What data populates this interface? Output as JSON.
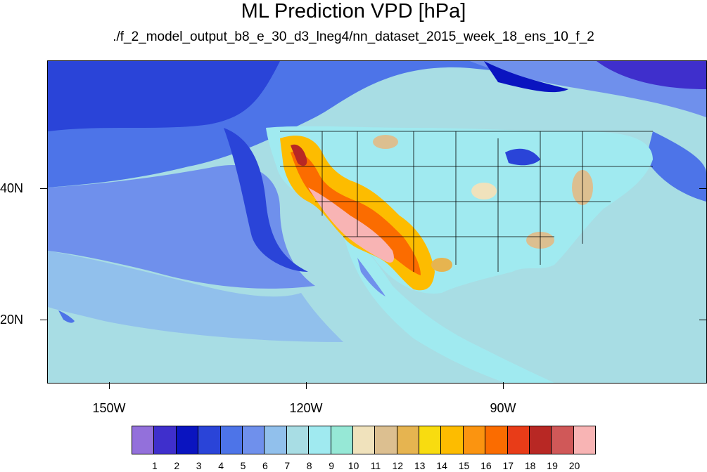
{
  "title": "ML Prediction VPD [hPa]",
  "subtitle": "./f_2_model_output_b8_e_30_d3_lneg4/nn_dataset_2015_week_18_ens_10_f_2",
  "x_axis": {
    "labels": [
      "150W",
      "120W",
      "90W"
    ]
  },
  "y_axis": {
    "labels": [
      "40N",
      "20N"
    ]
  },
  "colorbar": {
    "labels": [
      "1",
      "2",
      "3",
      "4",
      "5",
      "6",
      "7",
      "8",
      "9",
      "10",
      "11",
      "12",
      "13",
      "14",
      "15",
      "16",
      "17",
      "18",
      "19",
      "20"
    ],
    "colors": [
      "#9370db",
      "#3f2fcc",
      "#0a14c0",
      "#2a44d8",
      "#4d74e8",
      "#6f90ec",
      "#91c0ec",
      "#a8dde4",
      "#a0eaf0",
      "#96e8d6",
      "#f0e2bc",
      "#dcbf90",
      "#e6b450",
      "#f8dc10",
      "#fdbc00",
      "#fb9410",
      "#fb6c00",
      "#e83c18",
      "#b82824",
      "#d05858",
      "#f8b4b4"
    ]
  },
  "colors": {
    "ocean_deep": "#2a44d8",
    "ocean_mid": "#6f90ec",
    "ocean_light": "#a8dde4",
    "land_moist": "#a0eaf0",
    "arid_core": "#f8b4b4"
  }
}
